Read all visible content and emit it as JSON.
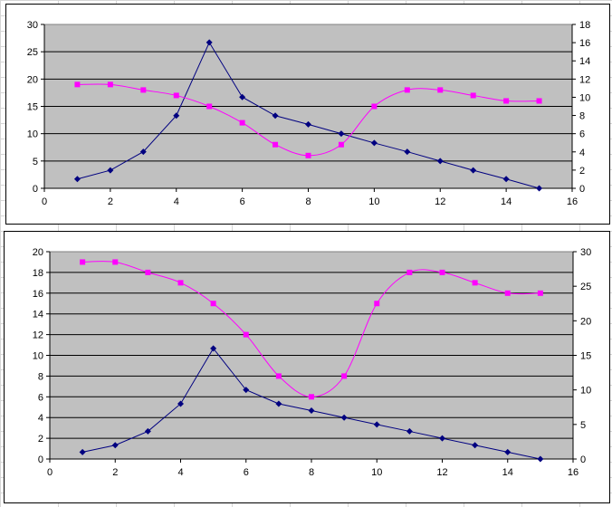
{
  "chart_data": [
    {
      "type": "line",
      "title": "",
      "xlabel": "",
      "ylabel": "",
      "xlim": [
        0,
        16
      ],
      "xticks": [
        0,
        2,
        4,
        6,
        8,
        10,
        12,
        14,
        16
      ],
      "ylim": [
        0,
        30
      ],
      "yticks": [
        0,
        5,
        10,
        15,
        20,
        25,
        30
      ],
      "y2lim": [
        0,
        18
      ],
      "y2ticks": [
        0,
        2,
        4,
        6,
        8,
        10,
        12,
        14,
        16,
        18
      ],
      "grid": "horizontal",
      "background": "#c0c0c0",
      "series": [
        {
          "axis": "left",
          "color": "#000080",
          "marker": "diamond",
          "smooth": false,
          "x": [
            1,
            2,
            3,
            4,
            5,
            6,
            7,
            8,
            9,
            10,
            11,
            12,
            13,
            14,
            15
          ],
          "y": [
            1.7,
            3.3,
            6.7,
            13.3,
            26.7,
            16.7,
            13.3,
            11.7,
            10,
            8.3,
            6.7,
            5,
            3.3,
            1.7,
            0
          ]
        },
        {
          "axis": "left",
          "color": "#ff00ff",
          "marker": "square",
          "smooth": true,
          "x": [
            1,
            2,
            3,
            4,
            5,
            6,
            7,
            8,
            9,
            10,
            11,
            12,
            13,
            14,
            15
          ],
          "y": [
            19,
            19,
            18,
            17,
            15,
            12,
            8,
            6,
            8,
            15,
            18,
            18,
            17,
            16,
            16
          ]
        }
      ]
    },
    {
      "type": "line",
      "title": "",
      "xlabel": "",
      "ylabel": "",
      "xlim": [
        0,
        16
      ],
      "xticks": [
        0,
        2,
        4,
        6,
        8,
        10,
        12,
        14,
        16
      ],
      "ylim": [
        0,
        20
      ],
      "yticks": [
        0,
        2,
        4,
        6,
        8,
        10,
        12,
        14,
        16,
        18,
        20
      ],
      "y2lim": [
        0,
        30
      ],
      "y2ticks": [
        0,
        5,
        10,
        15,
        20,
        25,
        30
      ],
      "grid": "horizontal",
      "background": "#c0c0c0",
      "series": [
        {
          "axis": "left",
          "color": "#000080",
          "marker": "diamond",
          "smooth": false,
          "x": [
            1,
            2,
            3,
            4,
            5,
            6,
            7,
            8,
            9,
            10,
            11,
            12,
            13,
            14,
            15
          ],
          "y": [
            0.67,
            1.33,
            2.67,
            5.33,
            10.67,
            6.67,
            5.33,
            4.67,
            4,
            3.33,
            2.67,
            2,
            1.33,
            0.67,
            0
          ]
        },
        {
          "axis": "right",
          "color": "#ff00ff",
          "marker": "square",
          "smooth": true,
          "x": [
            1,
            2,
            3,
            4,
            5,
            6,
            7,
            8,
            9,
            10,
            11,
            12,
            13,
            14,
            15
          ],
          "y": [
            28.5,
            28.5,
            27,
            25.5,
            22.5,
            18,
            12,
            9,
            12,
            22.5,
            27,
            27,
            25.5,
            24,
            24
          ]
        }
      ]
    }
  ]
}
